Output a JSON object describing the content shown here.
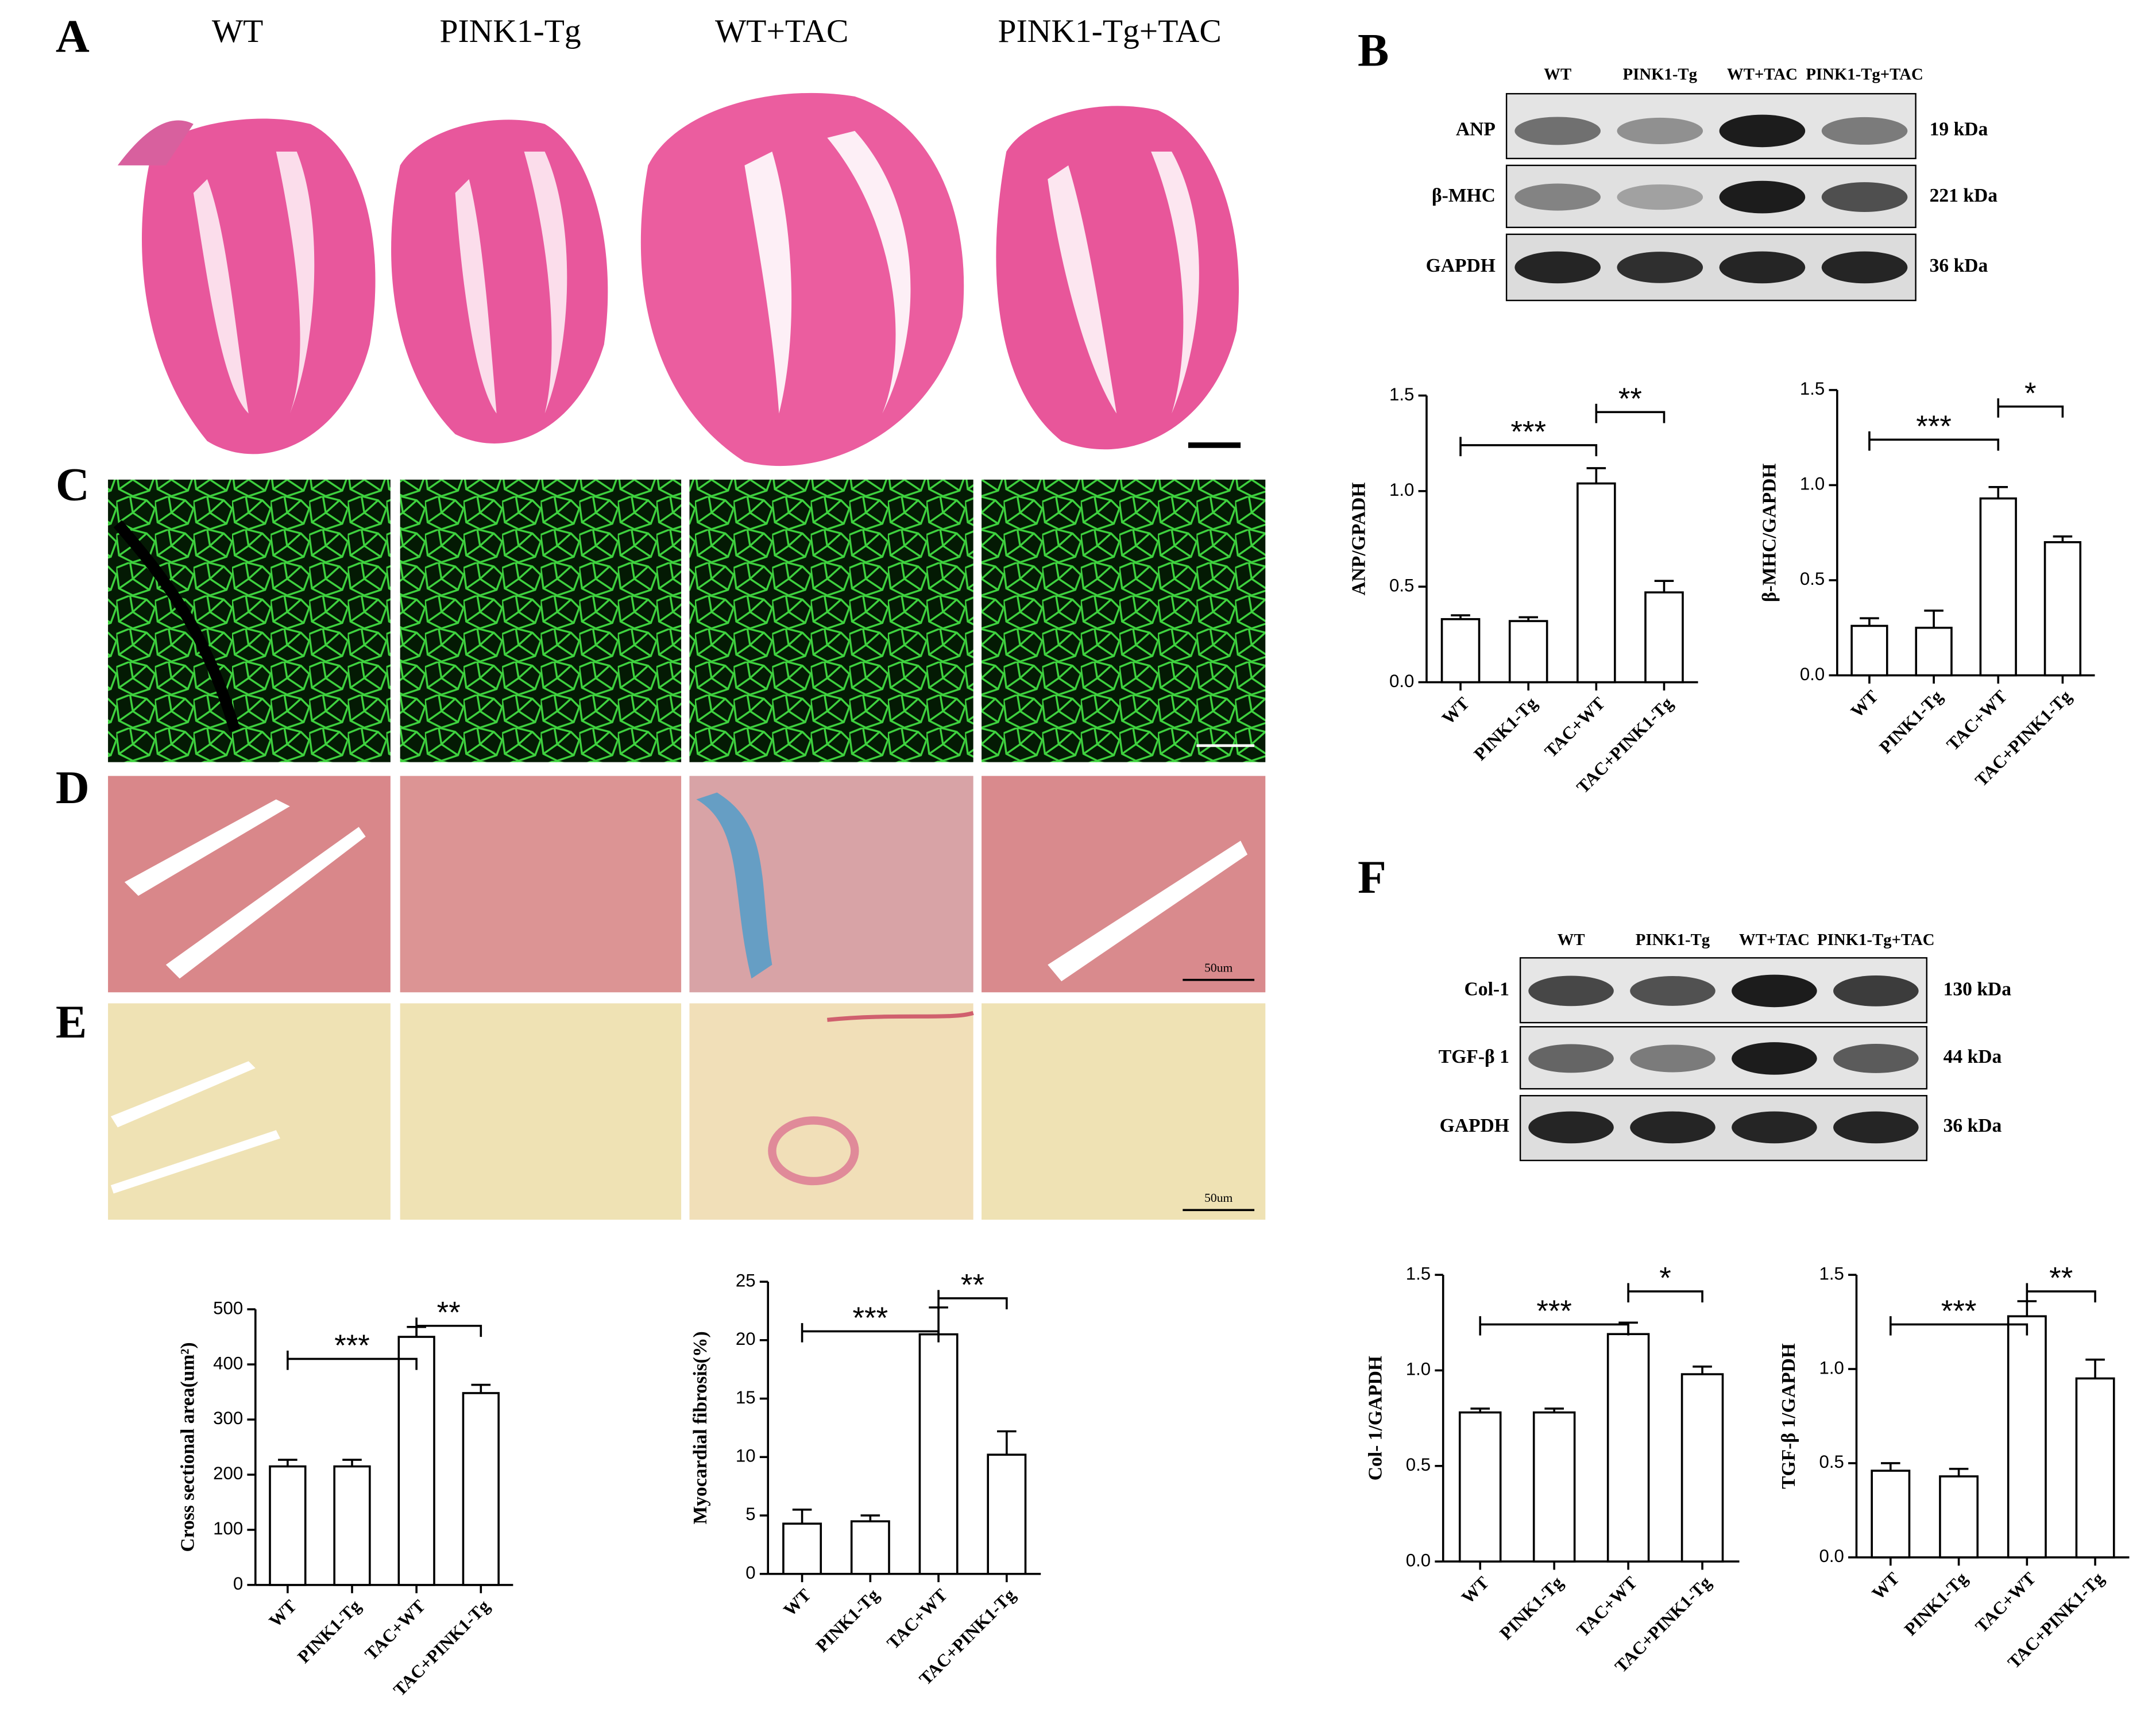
{
  "panel_labels": [
    "A",
    "B",
    "C",
    "D",
    "E",
    "F"
  ],
  "panel_a": {
    "groups": [
      "WT",
      "PINK1-Tg",
      "WT+TAC",
      "PINK1-Tg+TAC"
    ]
  },
  "blot_b": {
    "lanes": [
      "WT",
      "PINK1-Tg",
      "WT+TAC",
      "PINK1-Tg+TAC"
    ],
    "rows": [
      {
        "protein": "ANP",
        "size": "19 kDa"
      },
      {
        "protein": "β-MHC",
        "size": "221 kDa"
      },
      {
        "protein": "GAPDH",
        "size": "36 kDa"
      }
    ]
  },
  "blot_f": {
    "lanes": [
      "WT",
      "PINK1-Tg",
      "WT+TAC",
      "PINK1-Tg+TAC"
    ],
    "rows": [
      {
        "protein": "Col-1",
        "size": "130 kDa"
      },
      {
        "protein": "TGF-β 1",
        "size": "44 kDa"
      },
      {
        "protein": "GAPDH",
        "size": "36 kDa"
      }
    ]
  },
  "scale_labels": [
    "50um",
    "50um"
  ],
  "chart_data": [
    {
      "type": "bar",
      "ylabel": "ANP/GPADH",
      "categories": [
        "WT",
        "PINK1-Tg",
        "TAC+WT",
        "TAC+PINK1-Tg"
      ],
      "values": [
        0.33,
        0.32,
        1.04,
        0.47
      ],
      "errors": [
        0.02,
        0.02,
        0.08,
        0.06
      ],
      "annotations": [
        "***",
        "**"
      ],
      "ylim": [
        0,
        1.5
      ],
      "yticks": [
        {
          "value": 0,
          "label": "0.0"
        },
        0.5,
        {
          "value": 1,
          "label": "1.0"
        },
        1.5
      ],
      "color": "#ffffff"
    },
    {
      "type": "bar",
      "ylabel": "β-MHC/GAPDH",
      "categories": [
        "WT",
        "PINK1-Tg",
        "TAC+WT",
        "TAC+PINK1-Tg"
      ],
      "values": [
        0.26,
        0.25,
        0.93,
        0.7
      ],
      "errors": [
        0.04,
        0.09,
        0.06,
        0.03
      ],
      "annotations": [
        "***",
        "*"
      ],
      "ylim": [
        0,
        1.5
      ],
      "yticks": [
        {
          "value": 0,
          "label": "0.0"
        },
        0.5,
        {
          "value": 1,
          "label": "1.0"
        },
        1.5
      ],
      "color": "#ffffff"
    },
    {
      "type": "bar",
      "ylabel": "Cross sectional area(um²)",
      "categories": [
        "WT",
        "PINK1-Tg",
        "TAC+WT",
        "TAC+PINK1-Tg"
      ],
      "values": [
        215,
        215,
        450,
        348
      ],
      "errors": [
        12,
        12,
        18,
        15
      ],
      "annotations": [
        "***",
        "**"
      ],
      "ylim": [
        0,
        500
      ],
      "yticks": [
        0,
        100,
        200,
        300,
        400,
        500
      ],
      "color": "#ffffff"
    },
    {
      "type": "bar",
      "ylabel": "Myocardial fibrosis(%)",
      "categories": [
        "WT",
        "PINK1-Tg",
        "TAC+WT",
        "TAC+PINK1-Tg"
      ],
      "values": [
        4.3,
        4.5,
        20.5,
        10.2
      ],
      "errors": [
        1.2,
        0.5,
        2.3,
        2.0
      ],
      "annotations": [
        "***",
        "**"
      ],
      "ylim": [
        0,
        25
      ],
      "yticks": [
        0,
        5,
        10,
        15,
        20,
        25
      ],
      "color": "#ffffff"
    },
    {
      "type": "bar",
      "ylabel": "Col- 1/GAPDH",
      "categories": [
        "WT",
        "PINK1-Tg",
        "TAC+WT",
        "TAC+PINK1-Tg"
      ],
      "values": [
        0.78,
        0.78,
        1.19,
        0.98
      ],
      "errors": [
        0.02,
        0.02,
        0.06,
        0.04
      ],
      "annotations": [
        "***",
        "*"
      ],
      "ylim": [
        0,
        1.5
      ],
      "yticks": [
        {
          "value": 0,
          "label": "0.0"
        },
        0.5,
        {
          "value": 1,
          "label": "1.0"
        },
        1.5
      ],
      "color": "#ffffff"
    },
    {
      "type": "bar",
      "ylabel": "TGF-β 1/GAPDH",
      "categories": [
        "WT",
        "PINK1-Tg",
        "TAC+WT",
        "TAC+PINK1-Tg"
      ],
      "values": [
        0.46,
        0.43,
        1.28,
        0.95
      ],
      "errors": [
        0.04,
        0.04,
        0.08,
        0.1
      ],
      "annotations": [
        "***",
        "**"
      ],
      "ylim": [
        0,
        1.5
      ],
      "yticks": [
        {
          "value": 0,
          "label": "0.0"
        },
        0.5,
        {
          "value": 1,
          "label": "1.0"
        },
        1.5
      ],
      "color": "#ffffff"
    }
  ]
}
